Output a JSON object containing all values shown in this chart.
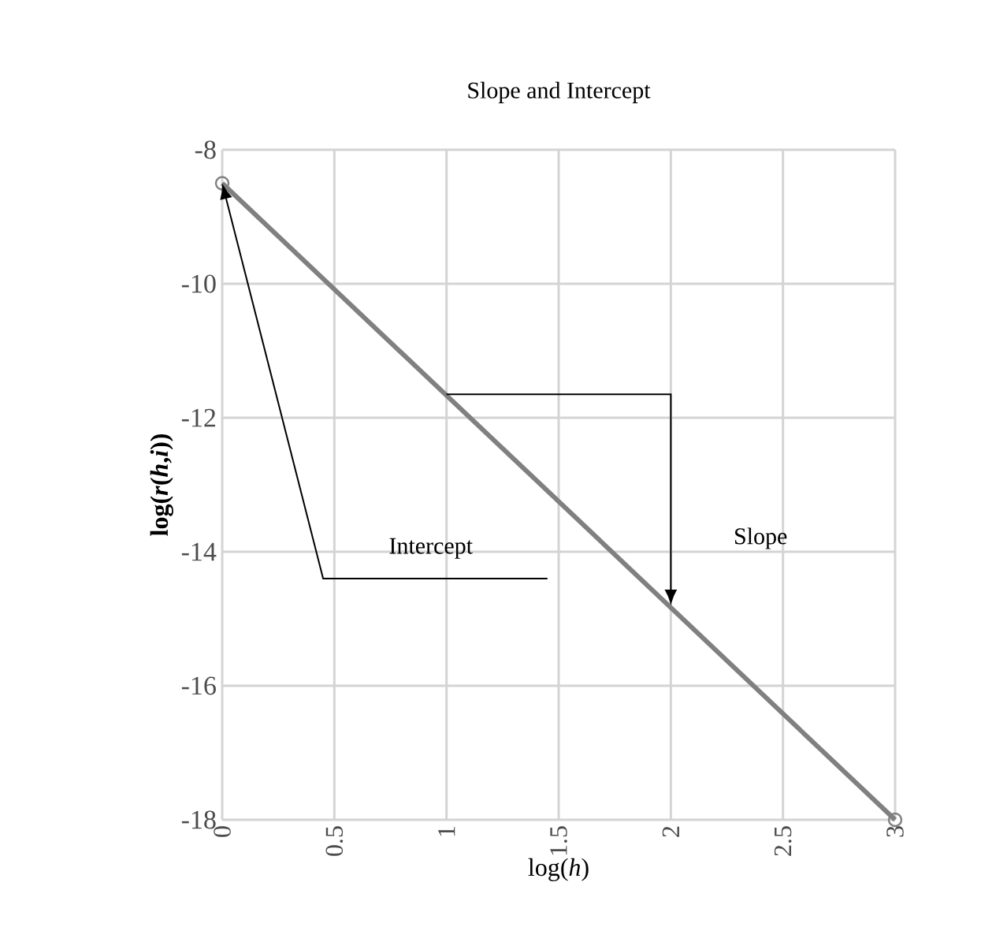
{
  "chart_data": {
    "type": "line",
    "title": "Slope and Intercept",
    "xlabel": "log(*h*)",
    "ylabel": "log(*r*(*h*,*i*))",
    "x": [
      0,
      3
    ],
    "series": [
      {
        "color": "#808080",
        "values": [
          -8.5,
          -18
        ]
      }
    ],
    "marker": "circle",
    "line_style": "solid",
    "grid": true,
    "legend": false,
    "xlim": [
      0,
      3
    ],
    "ylim": [
      -18,
      -8
    ],
    "xticks": [
      0,
      0.5,
      1,
      1.5,
      2,
      2.5,
      3
    ],
    "yticks": [
      -18,
      -16,
      -14,
      -12,
      -10,
      -8
    ],
    "annotations": [
      "Intercept",
      "Slope"
    ]
  }
}
